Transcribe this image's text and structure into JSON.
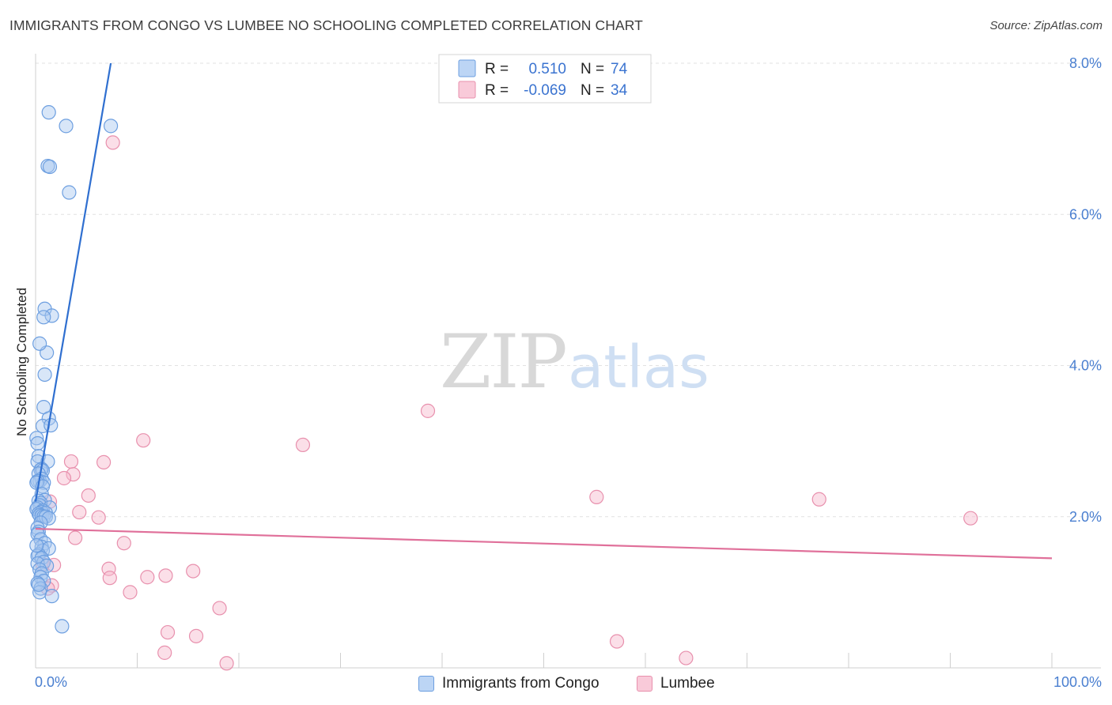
{
  "header": {
    "title": "IMMIGRANTS FROM CONGO VS LUMBEE NO SCHOOLING COMPLETED CORRELATION CHART",
    "source": "Source: ZipAtlas.com"
  },
  "watermark": {
    "zip": "ZIP",
    "atlas": "atlas"
  },
  "colors": {
    "congo_fill": "#a8c8f0",
    "congo_stroke": "#6d9fe0",
    "congo_line": "#2f6fd0",
    "lumbee_fill": "#f7b8cc",
    "lumbee_stroke": "#e890ad",
    "lumbee_line": "#e0709a",
    "tick_blue": "#4a7fd0"
  },
  "legend": {
    "rows": [
      {
        "r_label": "R =",
        "r_value": "0.510",
        "n_label": "N =",
        "n_value": "74"
      },
      {
        "r_label": "R =",
        "r_value": "-0.069",
        "n_label": "N =",
        "n_value": "34"
      }
    ]
  },
  "bottom_legend": [
    "Immigrants from Congo",
    "Lumbee"
  ],
  "chart_data": {
    "type": "scatter",
    "title": "IMMIGRANTS FROM CONGO VS LUMBEE NO SCHOOLING COMPLETED CORRELATION CHART",
    "xlabel": "",
    "ylabel": "No Schooling Completed",
    "xlim": [
      0,
      100
    ],
    "ylim": [
      0,
      8
    ],
    "x_ticks": [
      "0.0%",
      "100.0%"
    ],
    "y_ticks": [
      {
        "value": 2,
        "label": "2.0%"
      },
      {
        "value": 4,
        "label": "4.0%"
      },
      {
        "value": 6,
        "label": "6.0%"
      },
      {
        "value": 8,
        "label": "8.0%"
      }
    ],
    "grid": true,
    "legend_position": "top-center",
    "series": [
      {
        "name": "Immigrants from Congo",
        "r": 0.51,
        "n": 74,
        "trend": {
          "x": [
            0,
            7.4
          ],
          "y": [
            2.2,
            8.0
          ]
        },
        "x": [
          1.3,
          3.0,
          7.4,
          1.2,
          1.4,
          3.3,
          0.9,
          1.6,
          0.8,
          1.1,
          0.4,
          0.9,
          0.8,
          1.3,
          0.7,
          1.5,
          0.1,
          0.2,
          0.3,
          0.2,
          1.2,
          0.6,
          0.5,
          0.7,
          0.3,
          0.6,
          0.4,
          0.8,
          0.2,
          0.1,
          0.7,
          0.6,
          0.9,
          0.3,
          0.5,
          0.4,
          0.2,
          1.4,
          0.1,
          0.7,
          0.6,
          1.0,
          0.3,
          0.4,
          0.6,
          0.8,
          1.0,
          1.3,
          0.5,
          0.2,
          0.3,
          0.2,
          0.5,
          0.9,
          0.6,
          0.7,
          1.3,
          0.3,
          0.2,
          0.6,
          0.8,
          0.2,
          1.1,
          0.4,
          0.6,
          0.5,
          0.8,
          0.2,
          0.5,
          0.4,
          1.6,
          2.6,
          0.3,
          0.1
        ],
        "y": [
          7.35,
          7.17,
          7.17,
          6.64,
          6.63,
          6.29,
          4.75,
          4.66,
          4.64,
          4.17,
          4.29,
          3.88,
          3.45,
          3.3,
          3.2,
          3.21,
          3.04,
          2.97,
          2.8,
          2.73,
          2.73,
          2.63,
          2.62,
          2.61,
          2.57,
          2.5,
          2.47,
          2.45,
          2.47,
          2.45,
          2.4,
          2.3,
          2.22,
          2.21,
          2.18,
          2.15,
          2.12,
          2.12,
          2.1,
          2.08,
          2.06,
          2.05,
          2.04,
          2.02,
          2.01,
          2.0,
          2.0,
          1.98,
          1.92,
          1.85,
          1.8,
          1.77,
          1.7,
          1.65,
          1.6,
          1.55,
          1.58,
          1.5,
          1.48,
          1.45,
          1.4,
          1.38,
          1.35,
          1.3,
          1.25,
          1.2,
          1.15,
          1.12,
          1.05,
          1.0,
          0.95,
          0.55,
          1.1,
          1.62
        ]
      },
      {
        "name": "Lumbee",
        "r": -0.069,
        "n": 34,
        "trend": {
          "x": [
            0,
            100
          ],
          "y": [
            1.84,
            1.45
          ]
        },
        "x": [
          7.6,
          10.6,
          26.3,
          3.5,
          6.7,
          3.7,
          2.8,
          5.2,
          4.3,
          6.2,
          1.8,
          3.9,
          8.7,
          1.6,
          7.2,
          12.8,
          15.5,
          7.3,
          11.0,
          9.3,
          18.1,
          13.0,
          12.7,
          15.8,
          18.8,
          1.2,
          0.7,
          1.4,
          38.6,
          55.2,
          77.1,
          92.0,
          57.2,
          64.0
        ],
        "y": [
          6.95,
          3.01,
          2.95,
          2.73,
          2.72,
          2.56,
          2.51,
          2.28,
          2.06,
          1.99,
          1.36,
          1.72,
          1.65,
          1.09,
          1.31,
          1.22,
          1.28,
          1.19,
          1.2,
          1.0,
          0.79,
          0.47,
          0.2,
          0.42,
          0.06,
          1.05,
          1.37,
          2.2,
          3.4,
          2.26,
          2.23,
          1.98,
          0.35,
          0.13
        ]
      }
    ]
  }
}
